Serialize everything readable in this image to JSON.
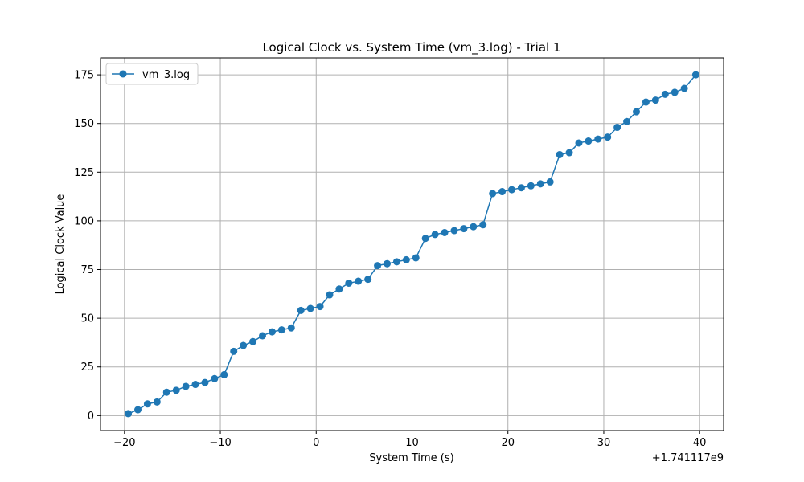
{
  "chart_data": {
    "type": "line",
    "title": "Logical Clock vs. System Time (vm_3.log) - Trial 1",
    "xlabel": "System Time (s)",
    "ylabel": "Logical Clock Value",
    "x_offset_label": "+1.741117e9",
    "xlim": [
      -22.5,
      42.5
    ],
    "ylim": [
      -7.7,
      183.7
    ],
    "xticks": [
      -20,
      -10,
      0,
      10,
      20,
      30,
      40
    ],
    "xtick_labels": [
      "−20",
      "−10",
      "0",
      "10",
      "20",
      "30",
      "40"
    ],
    "yticks": [
      0,
      25,
      50,
      75,
      100,
      125,
      150,
      175
    ],
    "ytick_labels": [
      "0",
      "25",
      "50",
      "75",
      "100",
      "125",
      "150",
      "175"
    ],
    "grid": true,
    "legend_position": "top-left",
    "series": [
      {
        "name": "vm_3.log",
        "color": "#1f77b4",
        "marker": "circle",
        "x": [
          -19.6,
          -18.6,
          -17.6,
          -16.6,
          -15.6,
          -14.6,
          -13.6,
          -12.6,
          -11.6,
          -10.6,
          -9.6,
          -8.6,
          -7.6,
          -6.6,
          -5.6,
          -4.6,
          -3.6,
          -2.6,
          -1.6,
          -0.6,
          0.4,
          1.4,
          2.4,
          3.4,
          4.4,
          5.4,
          6.4,
          7.4,
          8.4,
          9.4,
          10.4,
          11.4,
          12.4,
          13.4,
          14.4,
          15.4,
          16.4,
          17.4,
          18.4,
          19.4,
          20.4,
          21.4,
          22.4,
          23.4,
          24.4,
          25.4,
          26.4,
          27.4,
          28.4,
          29.4,
          30.4,
          31.4,
          32.4,
          33.4,
          34.4,
          35.4,
          36.4,
          37.4,
          38.4,
          39.6
        ],
        "y": [
          1,
          3,
          6,
          7,
          12,
          13,
          15,
          16,
          17,
          19,
          21,
          33,
          36,
          38,
          41,
          43,
          44,
          45,
          54,
          55,
          56,
          62,
          65,
          68,
          69,
          70,
          77,
          78,
          79,
          80,
          81,
          91,
          93,
          94,
          95,
          96,
          97,
          98,
          114,
          115,
          116,
          117,
          118,
          119,
          120,
          134,
          135,
          140,
          141,
          142,
          143,
          148,
          151,
          156,
          161,
          162,
          165,
          166,
          168,
          175
        ]
      }
    ]
  }
}
